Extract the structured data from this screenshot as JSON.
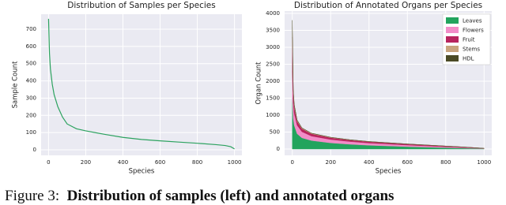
{
  "chart_data": [
    {
      "type": "line",
      "title": "Distribution of Samples per Species",
      "x_label": "Species",
      "y_label": "Sample Count",
      "x": [
        0,
        5,
        10,
        20,
        30,
        50,
        75,
        100,
        150,
        200,
        300,
        400,
        500,
        600,
        700,
        800,
        900,
        950,
        980,
        1000
      ],
      "series": [
        {
          "name": "Samples",
          "color": "#2ca25f",
          "values": [
            760,
            560,
            470,
            380,
            320,
            250,
            190,
            150,
            122,
            110,
            90,
            72,
            60,
            52,
            45,
            38,
            30,
            25,
            18,
            5
          ]
        }
      ],
      "xlim": [
        -40,
        1040
      ],
      "ylim": [
        -32,
        787
      ],
      "xticks": [
        0,
        200,
        400,
        600,
        800,
        1000
      ],
      "yticks": [
        0,
        100,
        200,
        300,
        400,
        500,
        600,
        700
      ],
      "grid": true
    },
    {
      "type": "stacked_area",
      "title": "Distribution of Annotated Organs per Species",
      "x_label": "Species",
      "y_label": "Organ Count",
      "x": [
        0,
        5,
        10,
        25,
        50,
        100,
        200,
        300,
        400,
        500,
        600,
        700,
        800,
        900,
        1000
      ],
      "series": [
        {
          "name": "Leaves",
          "color": "#22a45d",
          "values": [
            1500,
            900,
            700,
            450,
            330,
            250,
            180,
            140,
            110,
            90,
            70,
            55,
            40,
            25,
            10
          ]
        },
        {
          "name": "Flowers",
          "color": "#f28cc8",
          "values": [
            800,
            450,
            350,
            250,
            180,
            130,
            100,
            80,
            65,
            55,
            45,
            35,
            25,
            15,
            5
          ]
        },
        {
          "name": "Fruit",
          "color": "#b8245e",
          "values": [
            1000,
            300,
            200,
            120,
            90,
            70,
            55,
            45,
            40,
            35,
            30,
            25,
            20,
            15,
            5
          ]
        },
        {
          "name": "Stems",
          "color": "#c8a47e",
          "values": [
            300,
            80,
            50,
            30,
            20,
            15,
            10,
            8,
            6,
            5,
            4,
            3,
            2,
            2,
            1
          ]
        },
        {
          "name": "HDL",
          "color": "#4b4a25",
          "values": [
            200,
            40,
            20,
            10,
            5,
            3,
            2,
            2,
            1,
            1,
            1,
            1,
            1,
            1,
            0
          ]
        }
      ],
      "xlim": [
        -40,
        1040
      ],
      "ylim": [
        -186,
        4070
      ],
      "xticks": [
        0,
        200,
        400,
        600,
        800,
        1000
      ],
      "yticks": [
        0,
        500,
        1000,
        1500,
        2000,
        2500,
        3000,
        3500,
        4000
      ],
      "grid": true,
      "legend": "upper right"
    }
  ],
  "caption": {
    "label": "Figure 3:",
    "text": "Distribution of samples (left) and annotated organs"
  }
}
